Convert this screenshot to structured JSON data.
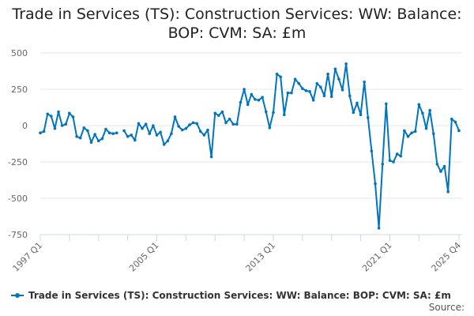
{
  "chart_data": {
    "type": "line",
    "title": "Trade in Services (TS): Construction Services: WW: Balance: BOP: CVM: SA: £m",
    "xlabel": "",
    "ylabel": "",
    "x_start": "1997 Q1",
    "x_end": "2025 Q4",
    "x_tick_labels": [
      "1997 Q1",
      "2005 Q1",
      "2013 Q1",
      "2021 Q1",
      "2025 Q4"
    ],
    "y_ticks": [
      500,
      250,
      0,
      -250,
      -500,
      -750
    ],
    "ylim": [
      -750,
      500
    ],
    "grid": true,
    "legend_placement": "bottom",
    "color": "#0075be",
    "series": [
      {
        "name": "Trade in Services (TS): Construction Services: WW: Balance: BOP: CVM: SA: £m",
        "values": [
          -50,
          -40,
          80,
          65,
          -20,
          95,
          0,
          10,
          85,
          60,
          -75,
          -85,
          -15,
          -35,
          -115,
          -60,
          -105,
          -90,
          -25,
          -50,
          -55,
          -50,
          null,
          -35,
          -75,
          -65,
          -100,
          15,
          -20,
          10,
          -55,
          0,
          -65,
          -45,
          -130,
          -105,
          -55,
          60,
          -5,
          -30,
          -20,
          5,
          20,
          15,
          -40,
          -65,
          -30,
          -215,
          85,
          70,
          95,
          20,
          45,
          10,
          10,
          160,
          250,
          145,
          215,
          180,
          175,
          195,
          95,
          -15,
          90,
          355,
          335,
          75,
          225,
          225,
          320,
          290,
          255,
          240,
          235,
          175,
          290,
          265,
          205,
          355,
          200,
          390,
          320,
          245,
          425,
          205,
          90,
          155,
          75,
          300,
          55,
          -175,
          -400,
          -705,
          -265,
          150,
          -240,
          -250,
          -195,
          -210,
          -35,
          -75,
          -50,
          -40,
          145,
          85,
          -20,
          105,
          -55,
          -265,
          -315,
          -280,
          -455,
          45,
          25,
          -35
        ]
      }
    ]
  },
  "source_label": "Source:"
}
